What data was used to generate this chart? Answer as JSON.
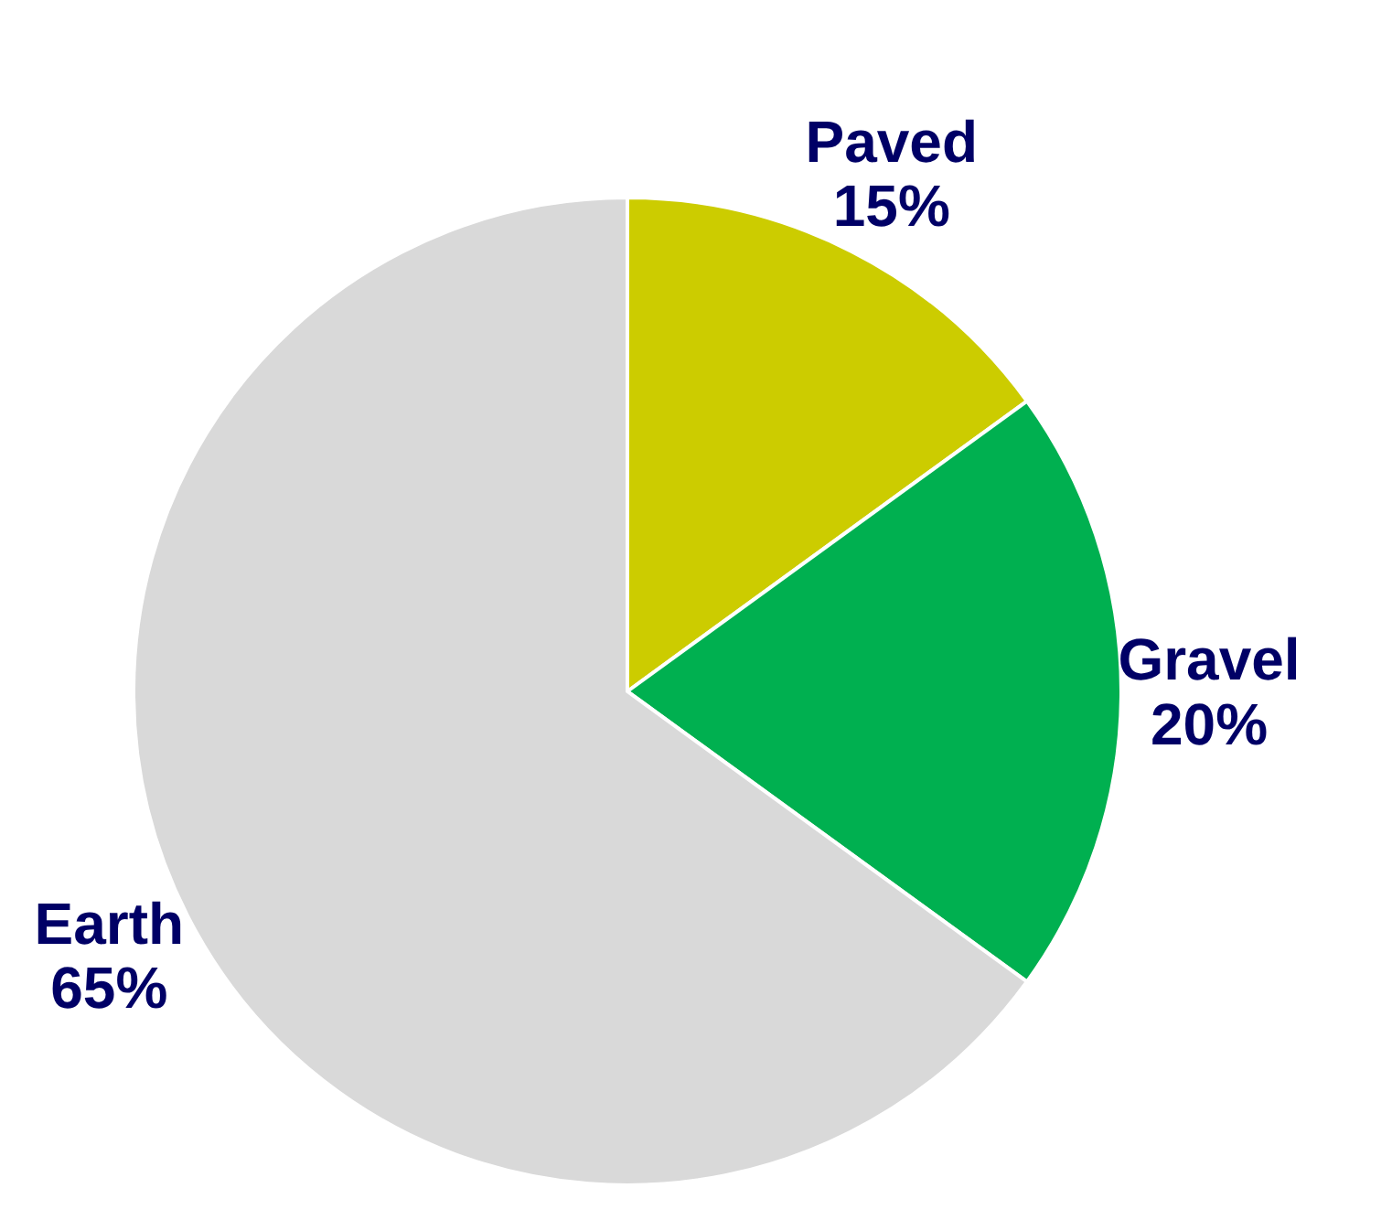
{
  "chart_data": {
    "type": "pie",
    "categories": [
      "Paved",
      "Gravel",
      "Earth"
    ],
    "values": [
      15,
      20,
      65
    ],
    "value_labels": [
      "15%",
      "20%",
      "65%"
    ],
    "colors": [
      "#cccc00",
      "#00b050",
      "#d9d9d9"
    ]
  }
}
